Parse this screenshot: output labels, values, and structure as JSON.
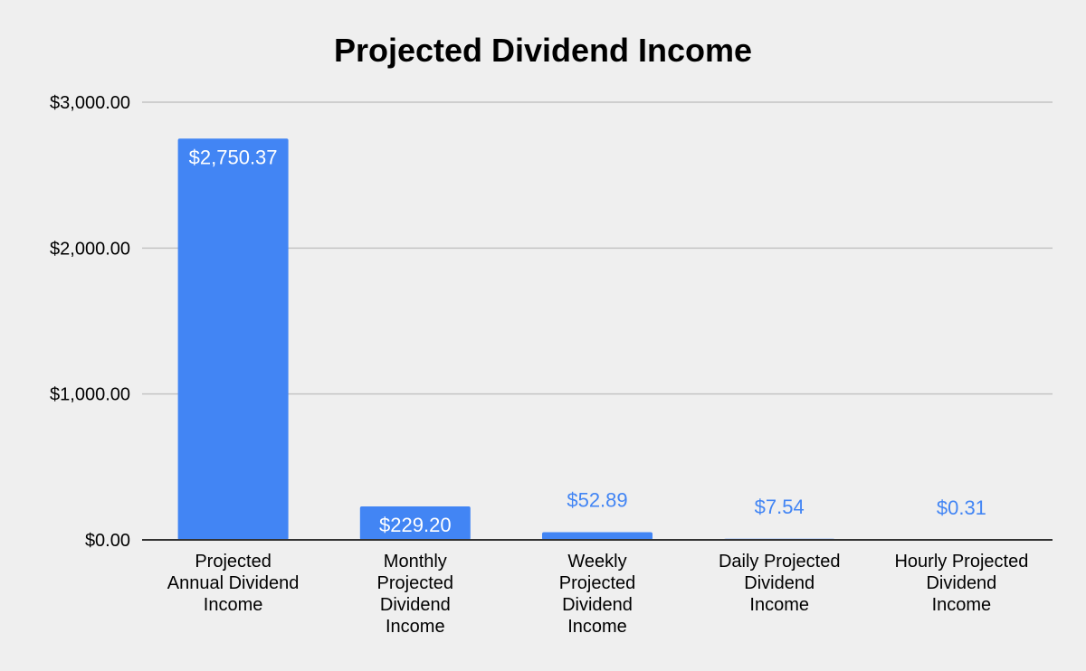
{
  "colors": {
    "background": "#efefef",
    "bar": "#4285f4",
    "grid": "#c4c4c4",
    "axis": "#333333",
    "label_inside": "#ffffff",
    "label_outside": "#4285f4",
    "text": "#000000"
  },
  "chart_data": {
    "type": "bar",
    "title": "Projected Dividend Income",
    "xlabel": "",
    "ylabel": "",
    "ylim": [
      0,
      3000
    ],
    "yticks": [
      0,
      1000,
      2000,
      3000
    ],
    "ytick_labels": [
      "$0.00",
      "$1,000.00",
      "$2,000.00",
      "$3,000.00"
    ],
    "grid": true,
    "legend": "none",
    "categories": [
      "Projected Annual Dividend Income",
      "Monthly Projected Dividend Income",
      "Weekly Projected Dividend Income",
      "Daily Projected Dividend Income",
      "Hourly Projected Dividend Income"
    ],
    "category_lines": [
      [
        "Projected",
        "Annual Dividend",
        "Income"
      ],
      [
        "Monthly",
        "Projected",
        "Dividend",
        "Income"
      ],
      [
        "Weekly",
        "Projected",
        "Dividend",
        "Income"
      ],
      [
        "Daily Projected",
        "Dividend",
        "Income"
      ],
      [
        "Hourly Projected",
        "Dividend",
        "Income"
      ]
    ],
    "values": [
      2750.37,
      229.2,
      52.89,
      7.54,
      0.31
    ],
    "data_labels": [
      "$2,750.37",
      "$229.20",
      "$52.89",
      "$7.54",
      "$0.31"
    ]
  }
}
